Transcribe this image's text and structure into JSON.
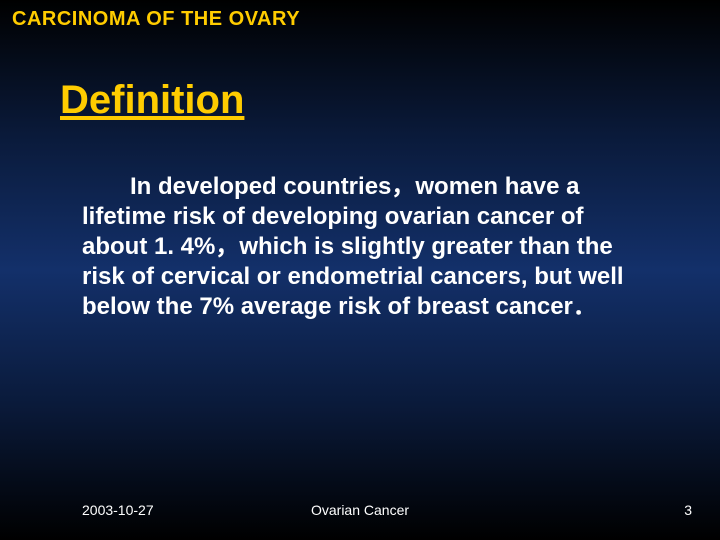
{
  "colors": {
    "background_gradient_top": "#000000",
    "background_gradient_mid": "#13306a",
    "background_gradient_bottom": "#000000",
    "header_text": "#ffcc00",
    "title_text": "#ffcc00",
    "body_text": "#ffffff",
    "footer_text": "#ffffff"
  },
  "typography": {
    "header_fontsize": 20,
    "header_weight": "bold",
    "header_family": "Arial",
    "title_fontsize": 40,
    "title_weight": "bold",
    "title_underline": true,
    "title_family": "Comic Sans MS",
    "body_fontsize": 24,
    "body_weight": "bold",
    "body_family": "Comic Sans MS",
    "footer_fontsize": 14,
    "footer_family": "Arial"
  },
  "header": {
    "text": "CARCINOMA OF THE OVARY"
  },
  "title": {
    "text": "Definition"
  },
  "body": {
    "text": "In developed countries，women have a lifetime risk of developing ovarian cancer of about 1. 4%，which is slightly greater than the risk of cervical or endometrial cancers, but well below the 7% average risk of breast cancer．"
  },
  "footer": {
    "date": "2003-10-27",
    "center": "Ovarian Cancer",
    "page": "3"
  }
}
